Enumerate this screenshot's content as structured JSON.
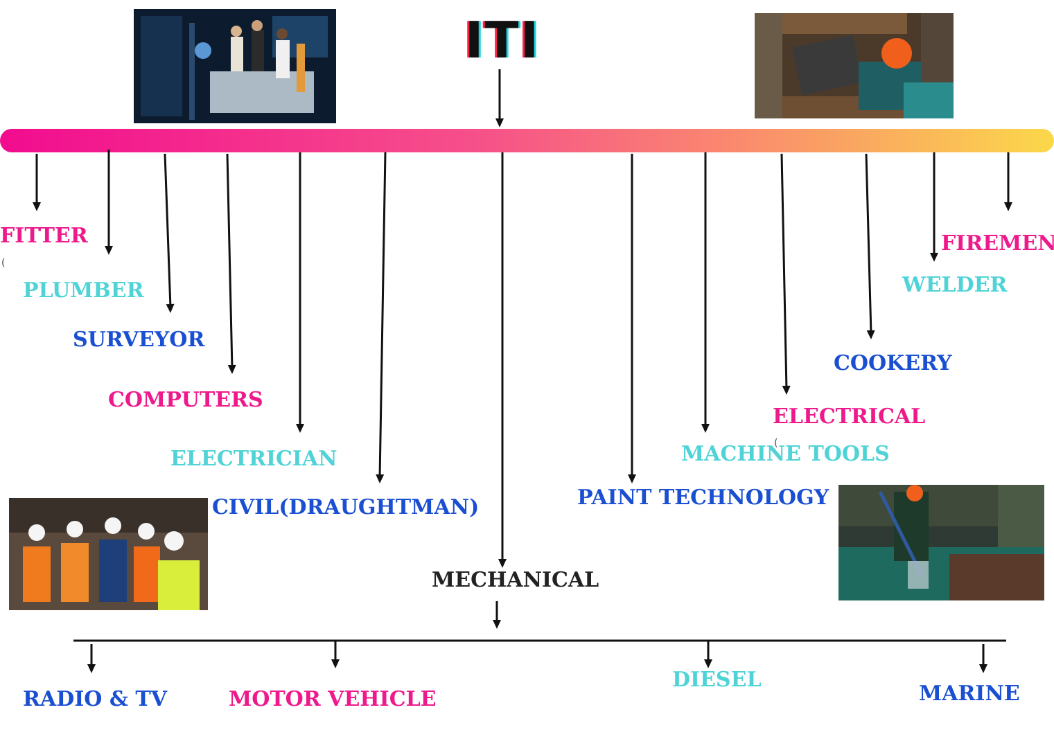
{
  "title": "ITI",
  "colors": {
    "bar_start": "#f20c8f",
    "bar_end": "#fbd84a",
    "magenta": "#ee1a8c",
    "cyan": "#4fd3d6",
    "blue": "#1a4fd1",
    "dark": "#222222"
  },
  "trades": {
    "fitter": "FITTER",
    "plumber": "PLUMBER",
    "surveyor": "SURVEYOR",
    "computers": "COMPUTERS",
    "electrician": "ELECTRICIAN",
    "civil": "CIVIL(DRAUGHTMAN)",
    "mechanical": "MECHANICAL",
    "paint": "PAINT TECHNOLOGY",
    "machine_tools": "MACHINE TOOLS",
    "electrical": "ELECTRICAL",
    "cookery": "COOKERY",
    "welder": "WELDER",
    "firemen": "FIREMEN"
  },
  "mechanical_branches": {
    "radio_tv": "RADIO & TV",
    "motor_vehicle": "MOTOR VEHICLE",
    "diesel": "DIESEL",
    "marine": "MARINE"
  },
  "stray_marks": {
    "left": "(",
    "right": "("
  }
}
